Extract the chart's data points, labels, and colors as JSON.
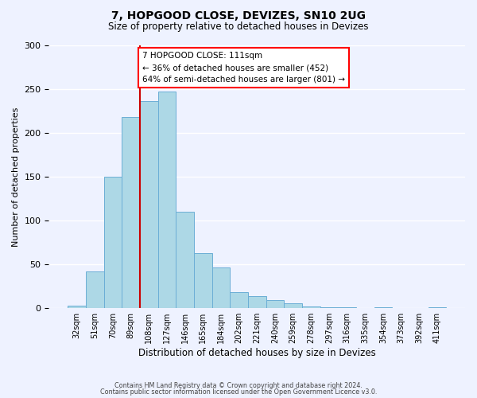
{
  "title": "7, HOPGOOD CLOSE, DEVIZES, SN10 2UG",
  "subtitle": "Size of property relative to detached houses in Devizes",
  "xlabel": "Distribution of detached houses by size in Devizes",
  "ylabel": "Number of detached properties",
  "footer_lines": [
    "Contains HM Land Registry data © Crown copyright and database right 2024.",
    "Contains public sector information licensed under the Open Government Licence v3.0."
  ],
  "bin_labels": [
    "32sqm",
    "51sqm",
    "70sqm",
    "89sqm",
    "108sqm",
    "127sqm",
    "146sqm",
    "165sqm",
    "184sqm",
    "202sqm",
    "221sqm",
    "240sqm",
    "259sqm",
    "278sqm",
    "297sqm",
    "316sqm",
    "335sqm",
    "354sqm",
    "373sqm",
    "392sqm",
    "411sqm"
  ],
  "bar_values": [
    3,
    42,
    150,
    218,
    236,
    247,
    110,
    63,
    46,
    18,
    14,
    9,
    6,
    2,
    1,
    1,
    0,
    1,
    0,
    0,
    1
  ],
  "bar_color": "#add8e6",
  "bar_edge_color": "#6baed6",
  "highlight_line_bin_index": 4,
  "ylim": [
    0,
    300
  ],
  "yticks": [
    0,
    50,
    100,
    150,
    200,
    250,
    300
  ],
  "annotation_text": "7 HOPGOOD CLOSE: 111sqm\n← 36% of detached houses are smaller (452)\n64% of semi-detached houses are larger (801) →",
  "annotation_box_color": "white",
  "annotation_box_edge_color": "red",
  "red_line_color": "#cc0000",
  "background_color": "#eef2ff"
}
